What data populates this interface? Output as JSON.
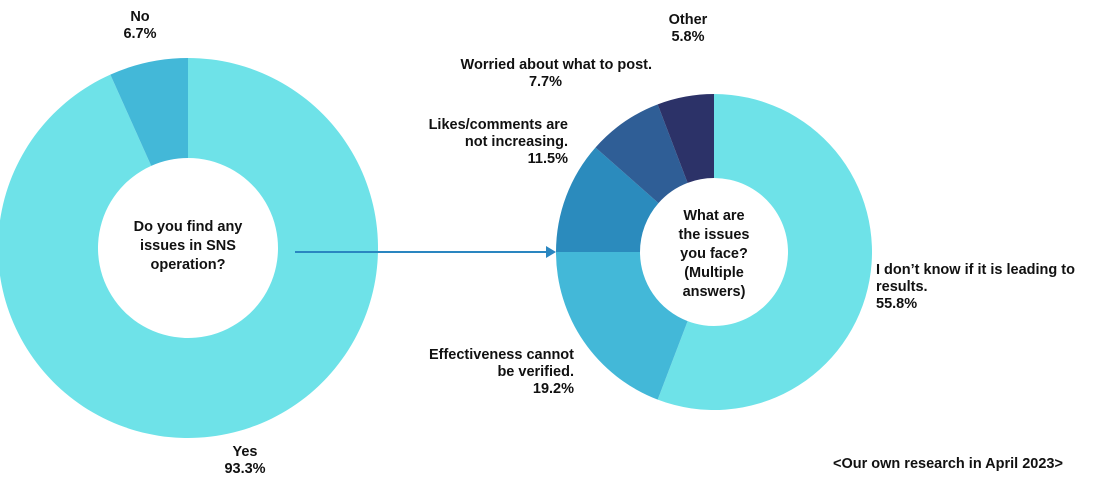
{
  "chart_data": [
    {
      "type": "pie",
      "center_text": [
        "Do you find any",
        "issues in SNS",
        "operation?"
      ],
      "slices": [
        {
          "name": "Yes",
          "value": 93.3,
          "label": "93.3%",
          "color": "#6ee2e8"
        },
        {
          "name": "No",
          "value": 6.7,
          "label": "6.7%",
          "color": "#43b8d8"
        }
      ]
    },
    {
      "type": "pie",
      "center_text": [
        "What are",
        "the issues",
        "you face?",
        "(Multiple",
        "answers)"
      ],
      "slices": [
        {
          "name_lines": [
            "I don’t know if it is leading to",
            "results."
          ],
          "value": 55.8,
          "label": "55.8%",
          "color": "#6ee2e8"
        },
        {
          "name_lines": [
            "Effectiveness cannot",
            "be verified."
          ],
          "value": 19.2,
          "label": "19.2%",
          "color": "#43b8d8"
        },
        {
          "name_lines": [
            "Likes/comments are",
            "not increasing."
          ],
          "value": 11.5,
          "label": "11.5%",
          "color": "#2b8bbd"
        },
        {
          "name_lines": [
            "Worried about what to post."
          ],
          "value": 7.7,
          "label": "7.7%",
          "color": "#2f5e96"
        },
        {
          "name_lines": [
            "Other"
          ],
          "value": 5.8,
          "label": "5.8%",
          "color": "#2c3268"
        }
      ]
    }
  ],
  "source_note": "<Our own research in April 2023>"
}
